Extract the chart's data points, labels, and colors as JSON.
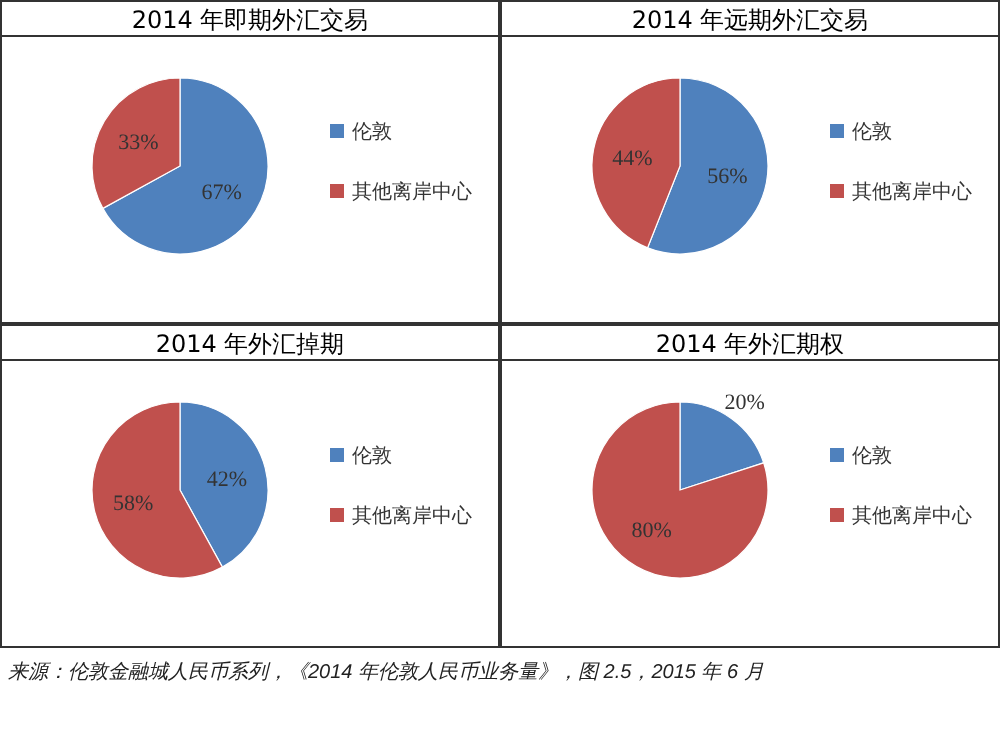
{
  "chart_data": [
    {
      "type": "pie",
      "title": "2014 年即期外汇交易",
      "categories": [
        "伦敦",
        "其他离岸中心"
      ],
      "values": [
        67,
        33
      ],
      "value_labels": [
        "67%",
        "33%"
      ],
      "colors": [
        "#4f81bd",
        "#c0504d"
      ],
      "legend": "right"
    },
    {
      "type": "pie",
      "title": "2014 年远期外汇交易",
      "categories": [
        "伦敦",
        "其他离岸中心"
      ],
      "values": [
        56,
        44
      ],
      "value_labels": [
        "56%",
        "44%"
      ],
      "colors": [
        "#4f81bd",
        "#c0504d"
      ],
      "legend": "right"
    },
    {
      "type": "pie",
      "title": "2014 年外汇掉期",
      "categories": [
        "伦敦",
        "其他离岸中心"
      ],
      "values": [
        42,
        58
      ],
      "value_labels": [
        "42%",
        "58%"
      ],
      "colors": [
        "#4f81bd",
        "#c0504d"
      ],
      "legend": "right"
    },
    {
      "type": "pie",
      "title": "2014 年外汇期权",
      "categories": [
        "伦敦",
        "其他离岸中心"
      ],
      "values": [
        20,
        80
      ],
      "value_labels": [
        "20%",
        "80%"
      ],
      "colors": [
        "#4f81bd",
        "#c0504d"
      ],
      "legend": "right",
      "annotations": [
        "来源：伦敦金融城人民币系列，《2014 年伦敦人民币业务量》，图 2.5，2015 年 6 月"
      ]
    }
  ]
}
